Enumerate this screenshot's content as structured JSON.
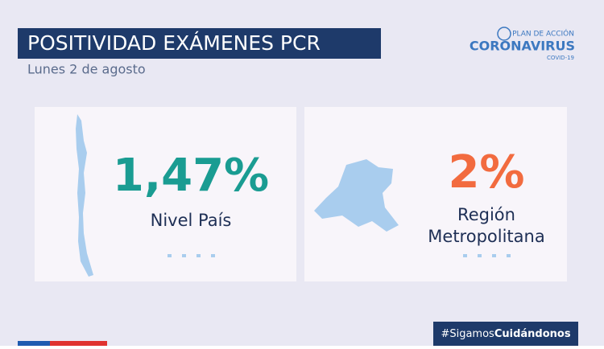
{
  "header": {
    "title": "POSITIVIDAD EXÁMENES PCR",
    "subtitle": "Lunes 2 de agosto"
  },
  "logo": {
    "top": "PLAN DE ACCIÓN",
    "main": "CORONAVIRUS",
    "bottom": "COVID-19"
  },
  "cards": [
    {
      "value": "1,47%",
      "label": [
        "Nivel País"
      ]
    },
    {
      "value": "2%",
      "label": [
        "Región",
        "Metropolitana"
      ]
    }
  ],
  "hashtag": {
    "prefix": "#Sigamos",
    "bold": "Cuidándonos"
  }
}
